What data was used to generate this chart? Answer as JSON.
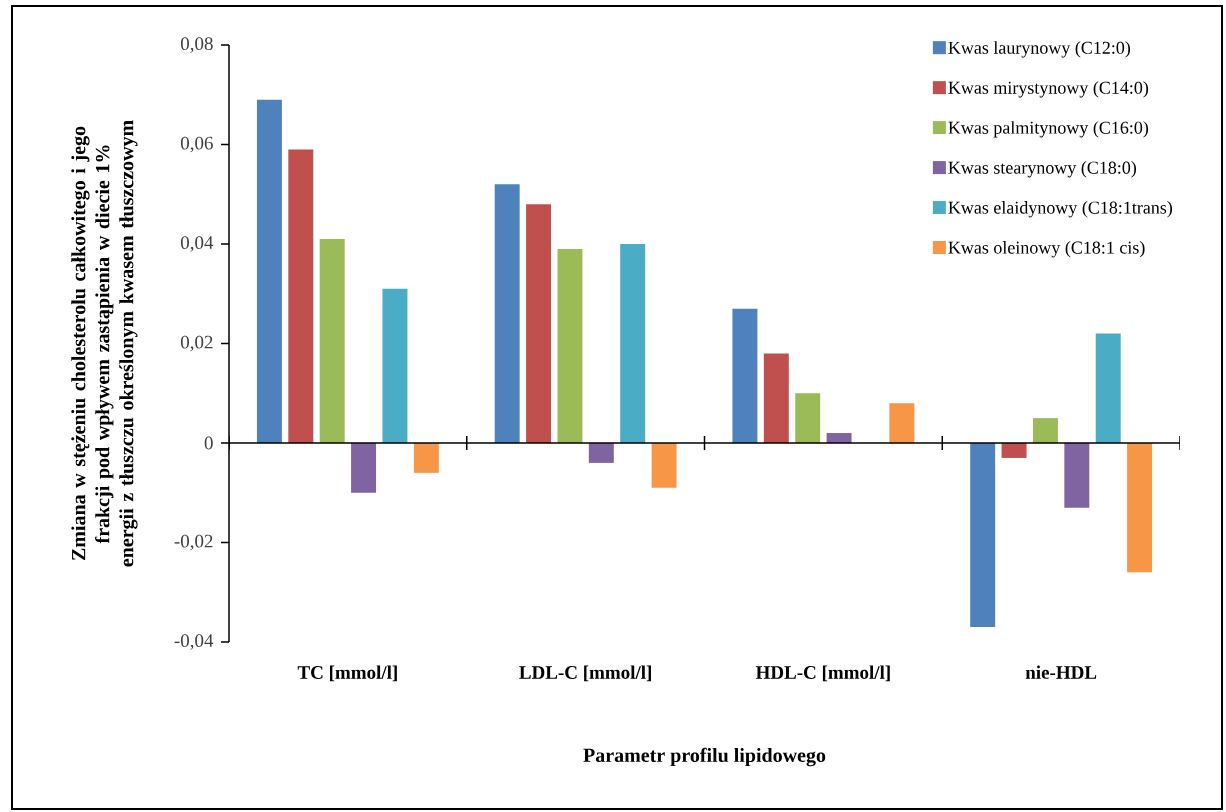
{
  "chart_data": {
    "type": "bar",
    "xlabel": "Parametr profilu lipidowego",
    "ylabel": "Zmiana w stężeniu cholesterolu całkowitego i jego frakcji pod wpływem zastąpienia w diecie 1% energii z tłuszczu określonym kwasem tłuszczowym",
    "categories": [
      "TC [mmol/l]",
      "LDL-C [mmol/l]",
      "HDL-C [mmol/l]",
      "nie-HDL"
    ],
    "series": [
      {
        "name": "Kwas laurynowy (C12:0)",
        "color": "#4f81bd",
        "values": [
          0.069,
          0.052,
          0.027,
          -0.037
        ]
      },
      {
        "name": "Kwas mirystynowy (C14:0)",
        "color": "#c0504d",
        "values": [
          0.059,
          0.048,
          0.018,
          -0.003
        ]
      },
      {
        "name": "Kwas palmitynowy (C16:0)",
        "color": "#9bbb59",
        "values": [
          0.041,
          0.039,
          0.01,
          0.005
        ]
      },
      {
        "name": "Kwas stearynowy (C18:0)",
        "color": "#8064a2",
        "values": [
          -0.01,
          -0.004,
          0.002,
          -0.013
        ]
      },
      {
        "name": "Kwas elaidynowy (C18:1trans)",
        "color": "#4bacc6",
        "values": [
          0.031,
          0.04,
          null,
          0.022
        ]
      },
      {
        "name": "Kwas oleinowy (C18:1 cis)",
        "color": "#f79646",
        "values": [
          -0.006,
          -0.009,
          0.008,
          -0.026
        ]
      }
    ],
    "ylim": [
      -0.04,
      0.08
    ],
    "yticks": [
      {
        "value": -0.04,
        "label": "-0,04"
      },
      {
        "value": -0.02,
        "label": "-0,02"
      },
      0,
      {
        "value": 0.02,
        "label": "0,02"
      },
      {
        "value": 0.04,
        "label": "0,04"
      },
      {
        "value": 0.06,
        "label": "0,06"
      },
      {
        "value": 0.08,
        "label": "0,08"
      }
    ],
    "legend": "top right"
  }
}
